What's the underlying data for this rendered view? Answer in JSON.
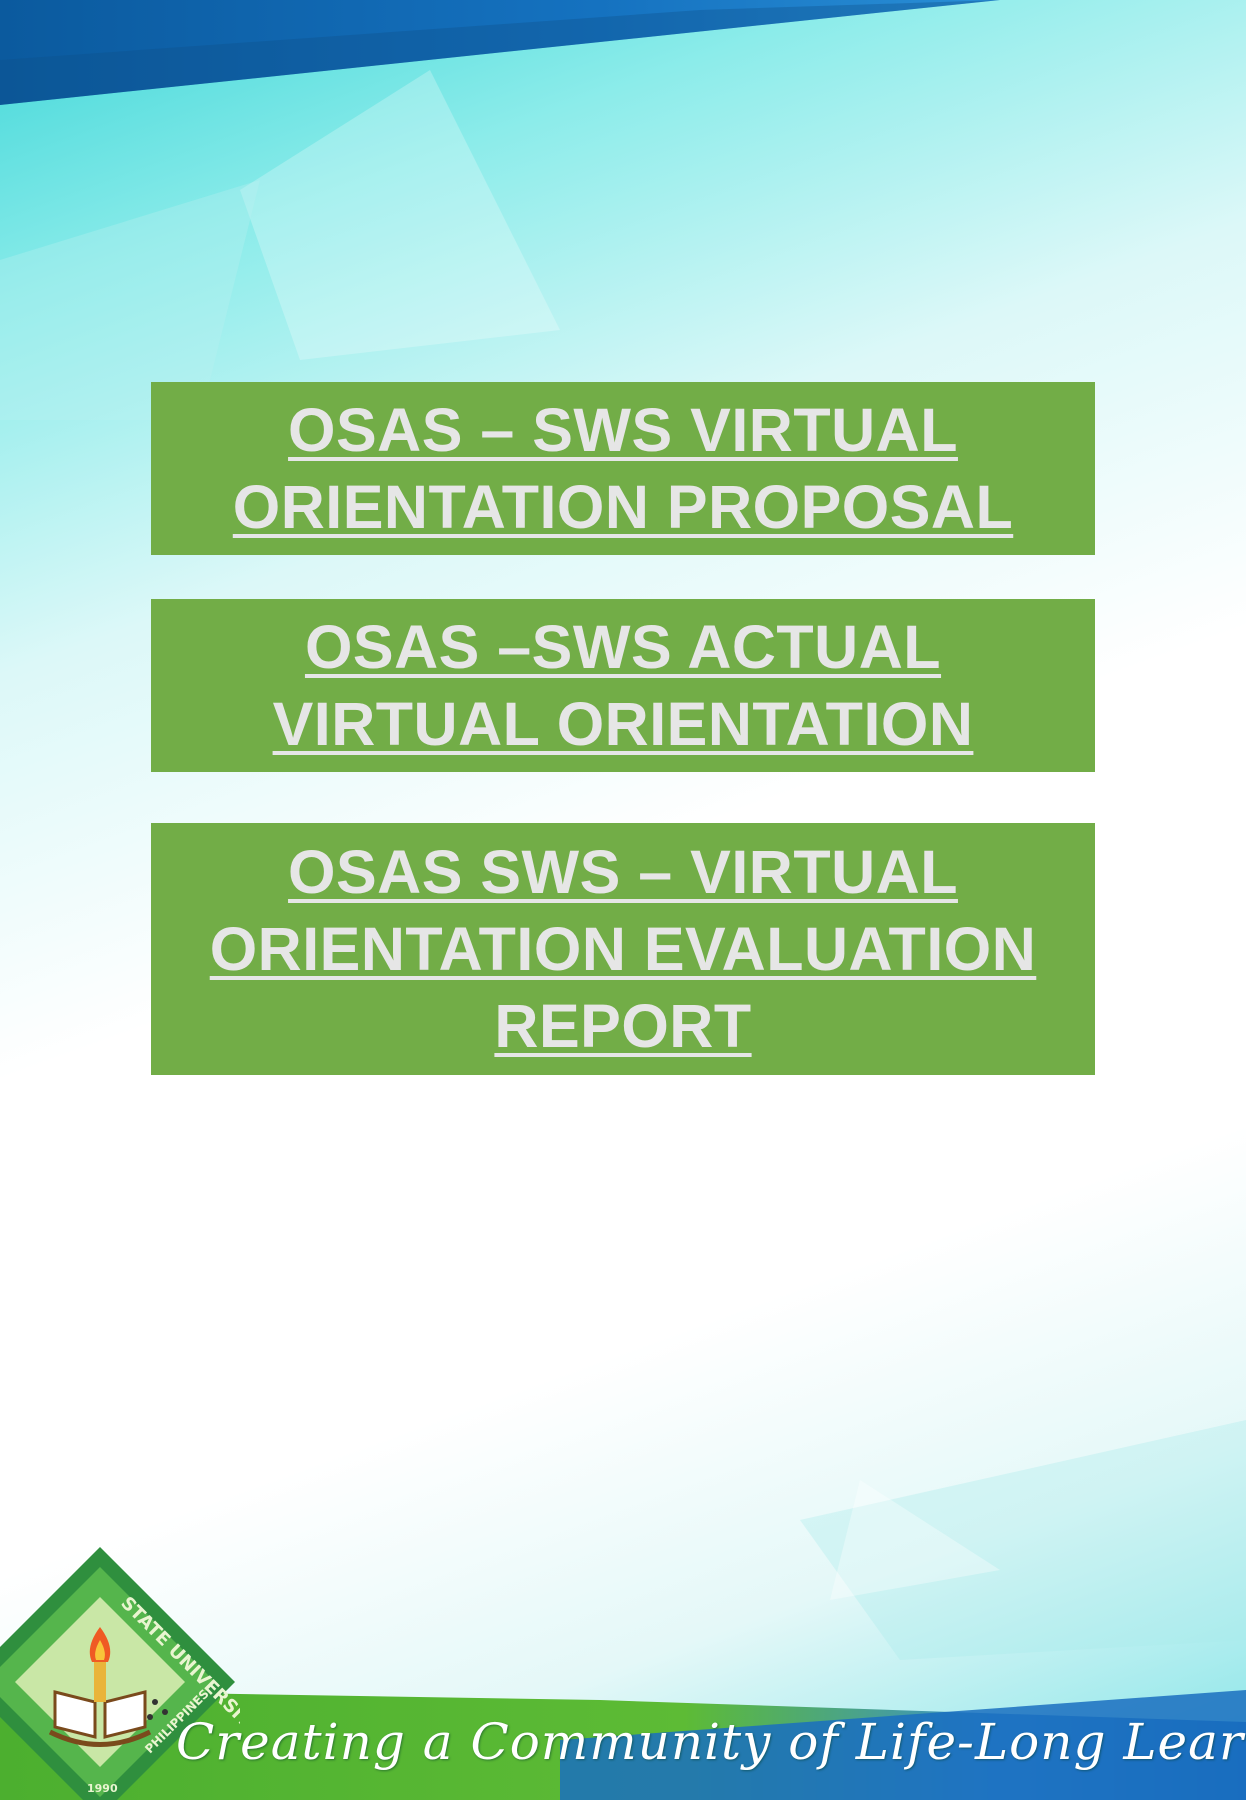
{
  "links": [
    {
      "label": "OSAS – SWS VIRTUAL ORIENTATION PROPOSAL"
    },
    {
      "label": "OSAS –SWS ACTUAL VIRTUAL ORIENTATION"
    },
    {
      "label": "OSAS SWS – VIRTUAL ORIENTATION EVALUATION REPORT"
    }
  ],
  "footer": {
    "tagline": "Creating a Community of Life-Long Learners",
    "seal": {
      "ring_text_top": "STATE UNIVERSITY",
      "ring_text_bottom": "PHILIPPINES",
      "year": "1990"
    }
  },
  "colors": {
    "box": "#72ad47",
    "box_text": "#e6e6e6",
    "top_band": "#0a5fa6",
    "bottom_band": "#1a6fbf",
    "green_band": "#5cb83a"
  }
}
